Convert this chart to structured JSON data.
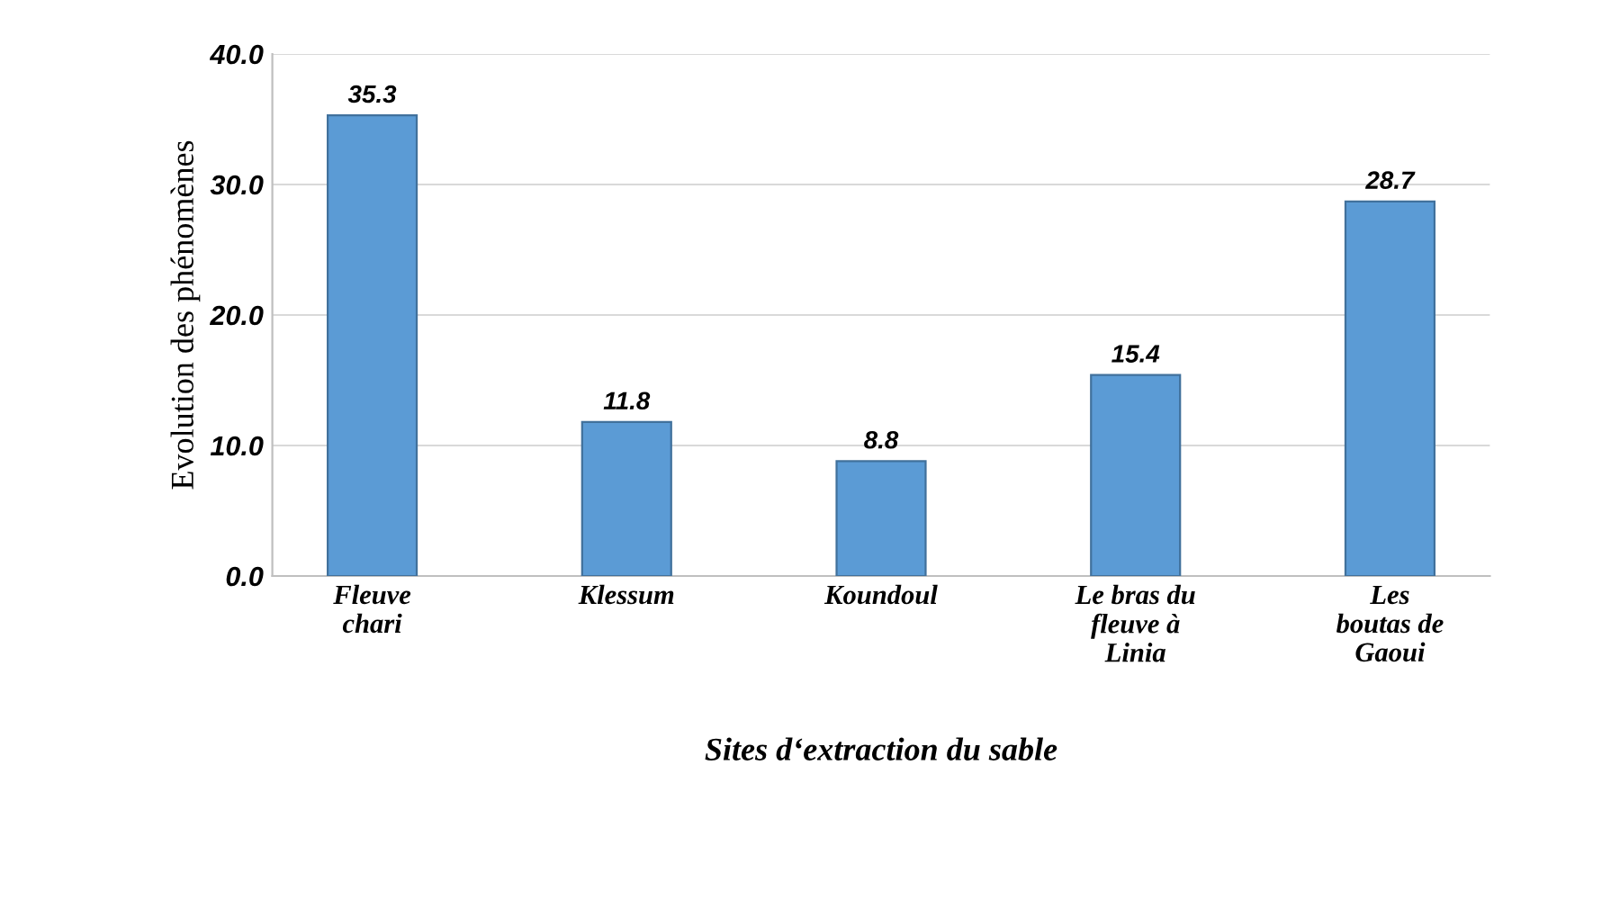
{
  "chart_data": {
    "type": "bar",
    "xlabel": "Sites d‘extraction du sable",
    "ylabel": "Evolution des phénomènes",
    "categories": [
      "Fleuve\nchari",
      "Klessum",
      "Koundoul",
      "Le bras du\nfleuve à\nLinia",
      "Les\nboutas de\nGaoui"
    ],
    "values": [
      35.3,
      11.8,
      8.8,
      15.4,
      28.7
    ],
    "color": "#5b9bd5",
    "ylim": [
      0,
      40
    ],
    "yticks": [
      {
        "value": 0,
        "label": "0.0"
      },
      {
        "value": 10,
        "label": "10.0"
      },
      {
        "value": 20,
        "label": "20.0"
      },
      {
        "value": 30,
        "label": "30.0"
      },
      {
        "value": 40,
        "label": "40.0"
      }
    ],
    "grid": "y",
    "data_labels": true
  }
}
